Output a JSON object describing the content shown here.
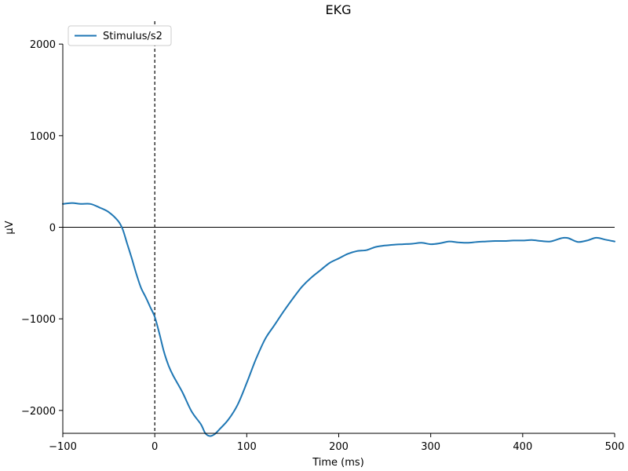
{
  "chart_data": {
    "type": "line",
    "title": "EKG",
    "xlabel": "Time (ms)",
    "ylabel": "µV",
    "xlim": [
      -100,
      500
    ],
    "ylim": [
      -2250,
      2250
    ],
    "xticks": [
      -100,
      0,
      100,
      200,
      300,
      400,
      500
    ],
    "yticks": [
      -2000,
      -1000,
      0,
      1000,
      2000
    ],
    "grid": false,
    "legend_position": "top-left",
    "event_marker_x": 0,
    "zero_line_y": 0,
    "series": [
      {
        "name": "Stimulus/s2",
        "color": "#1f77b4",
        "x": [
          -100,
          -90,
          -80,
          -70,
          -60,
          -50,
          -40,
          -35,
          -30,
          -25,
          -20,
          -15,
          -10,
          -5,
          0,
          5,
          10,
          15,
          20,
          30,
          40,
          50,
          55,
          60,
          65,
          70,
          80,
          90,
          100,
          110,
          120,
          130,
          140,
          150,
          160,
          170,
          180,
          190,
          200,
          210,
          220,
          230,
          240,
          250,
          260,
          270,
          280,
          290,
          300,
          310,
          320,
          330,
          340,
          350,
          360,
          370,
          380,
          390,
          400,
          410,
          420,
          430,
          440,
          445,
          450,
          460,
          470,
          480,
          490,
          500
        ],
        "y": [
          255,
          265,
          255,
          255,
          215,
          165,
          70,
          -20,
          -180,
          -340,
          -510,
          -660,
          -760,
          -870,
          -980,
          -1160,
          -1360,
          -1510,
          -1620,
          -1800,
          -2010,
          -2150,
          -2250,
          -2280,
          -2260,
          -2210,
          -2100,
          -1940,
          -1700,
          -1440,
          -1220,
          -1070,
          -920,
          -780,
          -650,
          -550,
          -470,
          -390,
          -340,
          -290,
          -260,
          -250,
          -215,
          -200,
          -190,
          -185,
          -180,
          -170,
          -185,
          -175,
          -155,
          -165,
          -170,
          -160,
          -155,
          -150,
          -150,
          -145,
          -145,
          -140,
          -150,
          -155,
          -125,
          -115,
          -120,
          -160,
          -145,
          -115,
          -135,
          -155
        ]
      }
    ]
  }
}
